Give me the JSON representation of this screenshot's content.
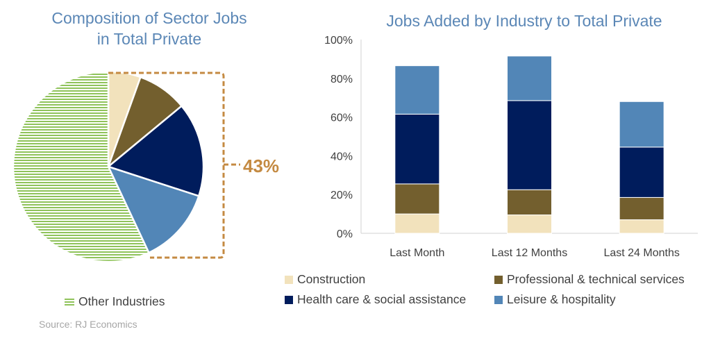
{
  "pie": {
    "title_line1": "Composition of Sector Jobs",
    "title_line2": "in Total Private",
    "callout_label": "43%",
    "legend_other": "Other Industries"
  },
  "source": "Source: RJ Economics",
  "colors": {
    "construction": "#f2e2bc",
    "professional": "#735f2e",
    "health": "#001c5c",
    "leisure": "#5286b7",
    "other": "#8fc35a",
    "callout": "#c48a42",
    "title": "#5b87b6"
  },
  "chart_data": [
    {
      "type": "pie",
      "title": "Composition of Sector Jobs in Total Private",
      "slices": [
        {
          "name": "Construction",
          "value": 5.5
        },
        {
          "name": "Professional & technical services",
          "value": 8.5
        },
        {
          "name": "Health care & social assistance",
          "value": 16.0
        },
        {
          "name": "Leisure & hospitality",
          "value": 13.0
        },
        {
          "name": "Other Industries",
          "value": 57.0
        }
      ],
      "annotation": "43%"
    },
    {
      "type": "bar",
      "stacked": true,
      "title": "Jobs Added by Industry to Total Private",
      "categories": [
        "Last Month",
        "Last 12 Months",
        "Last 24 Months"
      ],
      "series": [
        {
          "name": "Construction",
          "values": [
            10,
            9.5,
            7
          ]
        },
        {
          "name": "Professional & technical services",
          "values": [
            15.5,
            13,
            11.5
          ]
        },
        {
          "name": "Health care & social assistance",
          "values": [
            36,
            46,
            26
          ]
        },
        {
          "name": "Leisure & hospitality",
          "values": [
            25,
            23,
            23.5
          ]
        }
      ],
      "ylim": [
        0,
        100
      ],
      "yticks": [
        "0%",
        "20%",
        "40%",
        "60%",
        "80%",
        "100%"
      ],
      "legend": "bottom"
    }
  ]
}
